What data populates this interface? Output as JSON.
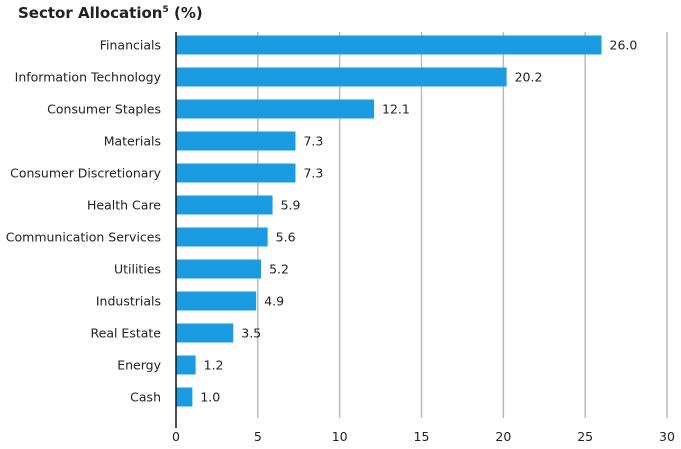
{
  "chart_data": {
    "type": "bar",
    "orientation": "horizontal",
    "title": "Sector Allocation",
    "title_superscript": "5",
    "title_suffix": "(%)",
    "categories": [
      "Financials",
      "Information Technology",
      "Consumer Staples",
      "Materials",
      "Consumer Discretionary",
      "Health Care",
      "Communication Services",
      "Utilities",
      "Industrials",
      "Real Estate",
      "Energy",
      "Cash"
    ],
    "values": [
      26.0,
      20.2,
      12.1,
      7.3,
      7.3,
      5.9,
      5.6,
      5.2,
      4.9,
      3.5,
      1.2,
      1.0
    ],
    "data_labels": [
      "26.0",
      "20.2",
      "12.1",
      "7.3",
      "7.3",
      "5.9",
      "5.6",
      "5.2",
      "4.9",
      "3.5",
      "1.2",
      "1.0"
    ],
    "xlim": [
      0,
      30
    ],
    "xticks": [
      "0",
      "5",
      "10",
      "15",
      "20",
      "25",
      "30"
    ],
    "grid": true,
    "bar_color": "#1b9be0",
    "grid_color": "#bbbbbb"
  }
}
